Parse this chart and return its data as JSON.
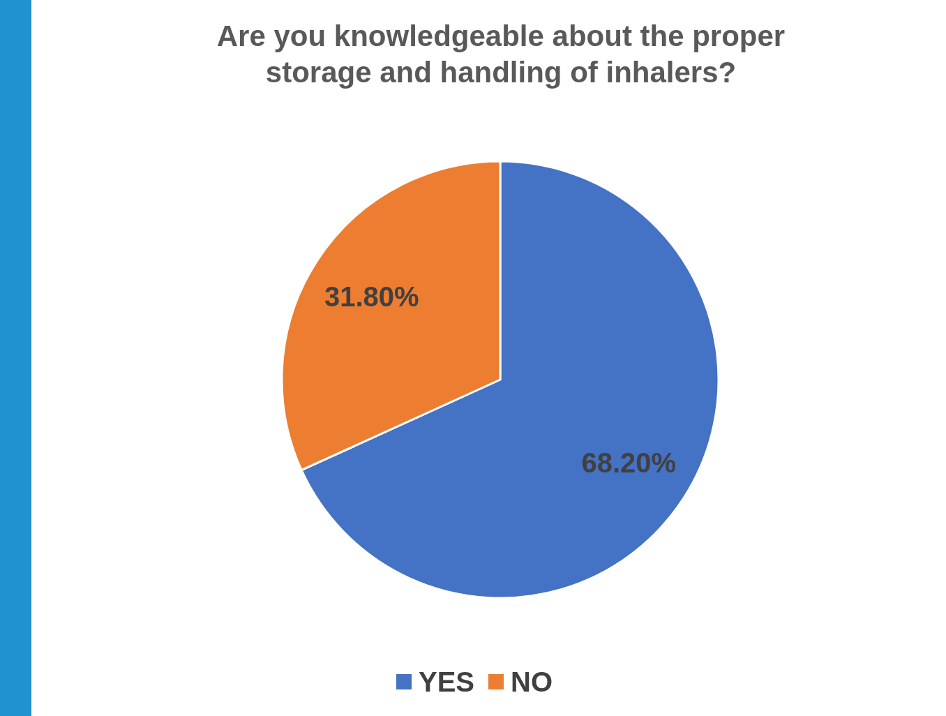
{
  "chart_data": {
    "type": "pie",
    "title": "Are you knowledgeable about the proper storage and handling of inhalers?",
    "categories": [
      "YES",
      "NO"
    ],
    "values": [
      68.2,
      31.8
    ],
    "colors": [
      "#4472c4",
      "#ed7d31"
    ],
    "value_labels": [
      "68.20%",
      "31.80%"
    ],
    "legend": "bottom"
  }
}
